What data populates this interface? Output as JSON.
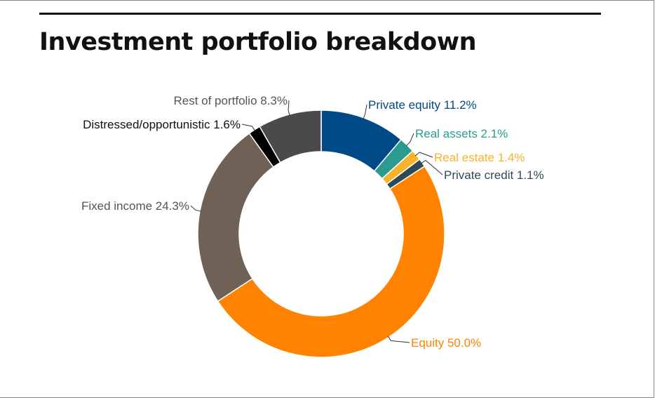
{
  "chart_data": {
    "type": "pie",
    "title": "Investment portfolio breakdown",
    "donut": true,
    "unit": "%",
    "slices": [
      {
        "label": "Private equity",
        "value": 11.2,
        "display": "Private equity 11.2%",
        "color": "#004a87"
      },
      {
        "label": "Real assets",
        "value": 2.1,
        "display": "Real assets 2.1%",
        "color": "#2c9b8f"
      },
      {
        "label": "Real estate",
        "value": 1.4,
        "display": "Real estate 1.4%",
        "color": "#f7b32b"
      },
      {
        "label": "Private credit",
        "value": 1.1,
        "display": "Private credit 1.1%",
        "color": "#2e4a57"
      },
      {
        "label": "Equity",
        "value": 50.0,
        "display": "Equity 50.0%",
        "color": "#ff8200"
      },
      {
        "label": "Fixed income",
        "value": 24.3,
        "display": "Fixed income 24.3%",
        "color": "#6f6156"
      },
      {
        "label": "Distressed/opportunistic",
        "value": 1.6,
        "display": "Distressed/opportunistic 1.6%",
        "color": "#000000"
      },
      {
        "label": "Rest of portfolio",
        "value": 8.3,
        "display": "Rest of portfolio 8.3%",
        "color": "#4a4a4a"
      }
    ],
    "label_colors": {
      "Private equity": "#004a87",
      "Real assets": "#2c9b8f",
      "Real estate": "#f7b32b",
      "Private credit": "#2e4a57",
      "Equity": "#ff8200",
      "Fixed income": "#555555",
      "Distressed/opportunistic": "#111111",
      "Rest of portfolio": "#555555"
    }
  }
}
